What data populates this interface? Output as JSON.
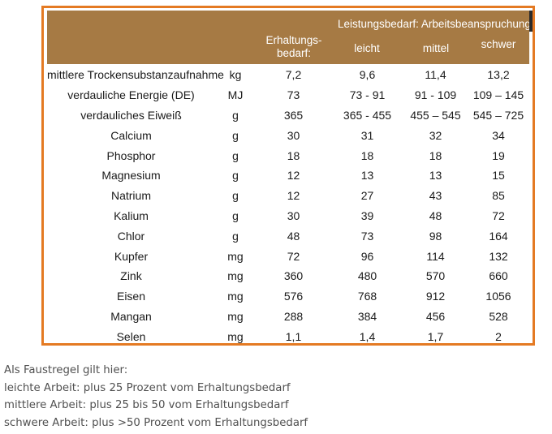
{
  "table": {
    "header": {
      "group_label": "Leistungsbedarf: Arbeitsbeanspruchung",
      "maintenance_line1": "Erhaltungs-",
      "maintenance_line2": "bedarf:",
      "light": "leicht",
      "medium": "mittel",
      "heavy": "schwer"
    },
    "rows": [
      {
        "name": "mittlere Trockensubstanzaufnahme",
        "unit": "kg",
        "maintenance": "7,2",
        "light": "9,6",
        "medium": "11,4",
        "heavy": "13,2"
      },
      {
        "name": "verdauliche Energie (DE)",
        "unit": "MJ",
        "maintenance": "73",
        "light": "73 - 91",
        "medium": "91 - 109",
        "heavy": "109 – 145"
      },
      {
        "name": "verdauliches Eiweiß",
        "unit": "g",
        "maintenance": "365",
        "light": "365 - 455",
        "medium": "455 – 545",
        "heavy": "545 – 725"
      },
      {
        "name": "Calcium",
        "unit": "g",
        "maintenance": "30",
        "light": "31",
        "medium": "32",
        "heavy": "34"
      },
      {
        "name": "Phosphor",
        "unit": "g",
        "maintenance": "18",
        "light": "18",
        "medium": "18",
        "heavy": "19"
      },
      {
        "name": "Magnesium",
        "unit": "g",
        "maintenance": "12",
        "light": "13",
        "medium": "13",
        "heavy": "15"
      },
      {
        "name": "Natrium",
        "unit": "g",
        "maintenance": "12",
        "light": "27",
        "medium": "43",
        "heavy": "85"
      },
      {
        "name": "Kalium",
        "unit": "g",
        "maintenance": "30",
        "light": "39",
        "medium": "48",
        "heavy": "72"
      },
      {
        "name": "Chlor",
        "unit": "g",
        "maintenance": "48",
        "light": "73",
        "medium": "98",
        "heavy": "164"
      },
      {
        "name": "Kupfer",
        "unit": "mg",
        "maintenance": "72",
        "light": "96",
        "medium": "114",
        "heavy": "132"
      },
      {
        "name": "Zink",
        "unit": "mg",
        "maintenance": "360",
        "light": "480",
        "medium": "570",
        "heavy": "660"
      },
      {
        "name": "Eisen",
        "unit": "mg",
        "maintenance": "576",
        "light": "768",
        "medium": "912",
        "heavy": "1056"
      },
      {
        "name": "Mangan",
        "unit": "mg",
        "maintenance": "288",
        "light": "384",
        "medium": "456",
        "heavy": "528"
      },
      {
        "name": "Selen",
        "unit": "mg",
        "maintenance": "1,1",
        "light": "1,4",
        "medium": "1,7",
        "heavy": "2"
      }
    ]
  },
  "note": {
    "intro": "Als Faustregel gilt hier:",
    "lines": [
      "leichte Arbeit:  plus 25 Prozent vom Erhaltungsbedarf",
      "mittlere Arbeit: plus 25 bis 50 vom Erhaltungsbedarf",
      "schwere Arbeit: plus >50 Prozent vom Erhaltungsbedarf"
    ]
  },
  "colors": {
    "border": "#e47a23",
    "header_bg": "#a67a44",
    "header_text": "#ffffff",
    "note_text": "#505050"
  }
}
